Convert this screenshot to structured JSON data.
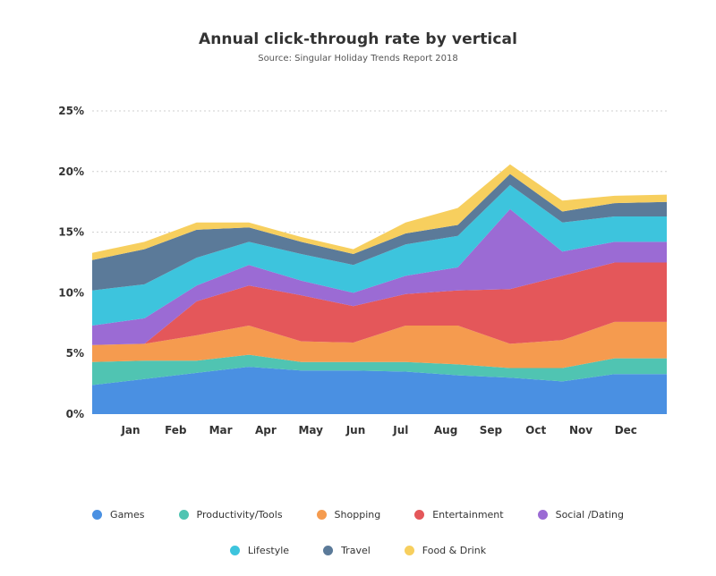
{
  "title": "Annual click-through rate by vertical",
  "subtitle": "Source: Singular Holiday Trends Report 2018",
  "chart_data": {
    "type": "area",
    "stacked": true,
    "title": "Annual click-through rate by vertical",
    "subtitle": "Source: Singular Holiday Trends Report 2018",
    "xlabel": "",
    "ylabel": "",
    "ylim": [
      0,
      25
    ],
    "y_ticks": [
      "0%",
      "5%",
      "10%",
      "15%",
      "20%",
      "25%"
    ],
    "y_tick_values": [
      0,
      5,
      10,
      15,
      20,
      25
    ],
    "grid": true,
    "legend_position": "bottom",
    "x_ticks": [
      "Jan",
      "Feb",
      "Mar",
      "Apr",
      "May",
      "Jun",
      "Jul",
      "Aug",
      "Sep",
      "Oct",
      "Nov",
      "Dec"
    ],
    "x": [
      "Jan",
      "Feb",
      "Mar",
      "Apr",
      "May",
      "Jun",
      "Jul",
      "Aug",
      "Sep",
      "Oct",
      "Nov",
      "Dec"
    ],
    "series": [
      {
        "name": "Games",
        "color": "#4a90e2",
        "values": [
          2.4,
          2.9,
          3.4,
          3.9,
          3.6,
          3.6,
          3.5,
          3.2,
          3.0,
          2.7,
          3.3,
          3.3
        ]
      },
      {
        "name": "Productivity/Tools",
        "color": "#50c4b2",
        "values": [
          1.9,
          1.5,
          1.0,
          1.0,
          0.7,
          0.7,
          0.8,
          0.9,
          0.8,
          1.1,
          1.3,
          1.3
        ]
      },
      {
        "name": "Shopping",
        "color": "#f59b4f",
        "values": [
          1.4,
          1.4,
          2.1,
          2.4,
          1.7,
          1.6,
          3.0,
          3.2,
          2.0,
          2.3,
          3.0,
          3.0
        ]
      },
      {
        "name": "Entertainment",
        "color": "#e4575a",
        "values": [
          0.0,
          0.0,
          2.8,
          3.3,
          3.8,
          3.0,
          2.6,
          2.9,
          4.5,
          5.3,
          4.9,
          4.9
        ]
      },
      {
        "name": "Social /Dating",
        "color": "#9b6bd4",
        "values": [
          1.6,
          2.1,
          1.3,
          1.7,
          1.2,
          1.1,
          1.5,
          1.9,
          6.6,
          2.0,
          1.7,
          1.7
        ]
      },
      {
        "name": "Lifestyle",
        "color": "#3dc4dd",
        "values": [
          2.9,
          2.8,
          2.3,
          1.9,
          2.2,
          2.3,
          2.6,
          2.6,
          2.0,
          2.4,
          2.1,
          2.1
        ]
      },
      {
        "name": "Travel",
        "color": "#5b7a99",
        "values": [
          2.5,
          2.9,
          2.3,
          1.2,
          1.0,
          0.9,
          0.9,
          0.9,
          0.9,
          0.9,
          1.1,
          1.2
        ]
      },
      {
        "name": "Food & Drink",
        "color": "#f7cf5e",
        "values": [
          0.6,
          0.6,
          0.6,
          0.4,
          0.4,
          0.4,
          0.9,
          1.4,
          0.8,
          0.9,
          0.6,
          0.6
        ]
      }
    ]
  },
  "legend": {
    "row1": [
      {
        "label": "Games",
        "color": "#4a90e2"
      },
      {
        "label": "Productivity/Tools",
        "color": "#50c4b2"
      },
      {
        "label": "Shopping",
        "color": "#f59b4f"
      },
      {
        "label": "Entertainment",
        "color": "#e4575a"
      },
      {
        "label": "Social /Dating",
        "color": "#9b6bd4"
      }
    ],
    "row2": [
      {
        "label": "Lifestyle",
        "color": "#3dc4dd"
      },
      {
        "label": "Travel",
        "color": "#5b7a99"
      },
      {
        "label": "Food & Drink",
        "color": "#f7cf5e"
      }
    ]
  }
}
